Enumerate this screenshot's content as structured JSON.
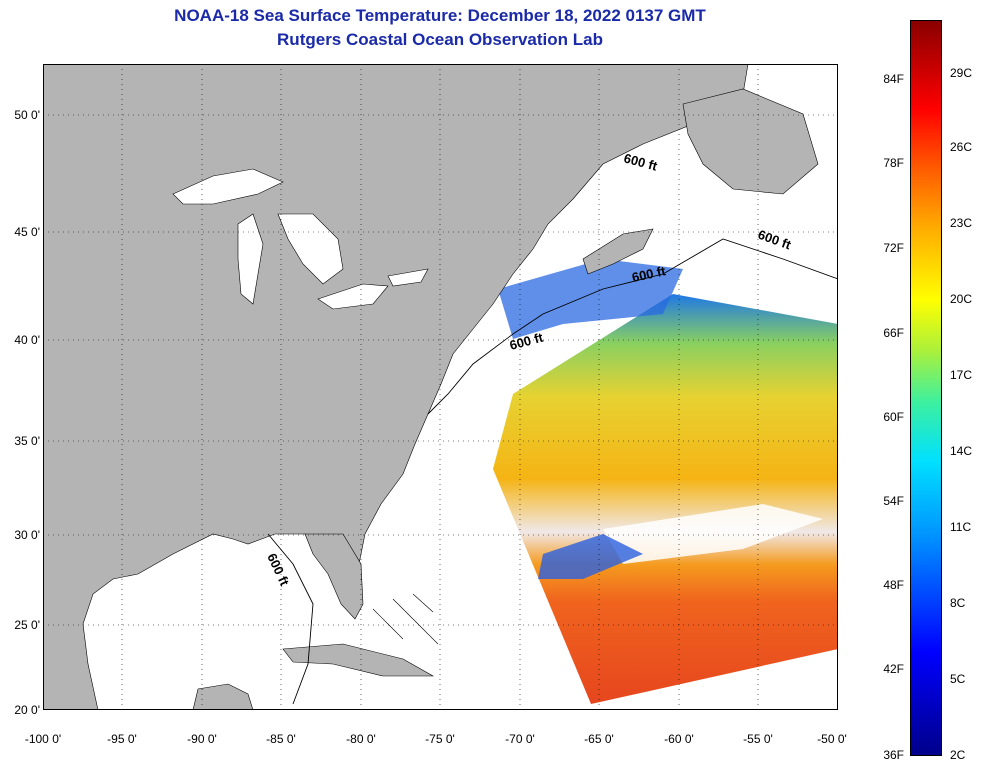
{
  "header": {
    "title": "NOAA-18 Sea Surface Temperature:  December 18, 2022 0137 GMT",
    "subtitle": "Rutgers Coastal Ocean Observation Lab"
  },
  "map": {
    "lat_labels": [
      "50 0'",
      "45 0'",
      "40 0'",
      "35 0'",
      "30 0'",
      "25 0'",
      "20 0'"
    ],
    "lon_labels": [
      "-100 0'",
      "-95 0'",
      "-90 0'",
      "-85 0'",
      "-80 0'",
      "-75 0'",
      "-70 0'",
      "-65 0'",
      "-60 0'",
      "-55 0'",
      "-50 0'"
    ],
    "contour_label": "600 ft",
    "colors": {
      "land": "#b4b4b4",
      "water": "#ffffff",
      "title": "#1a2aa8"
    }
  },
  "colorbar": {
    "fahrenheit_labels": [
      "84F",
      "78F",
      "72F",
      "66F",
      "60F",
      "54F",
      "48F",
      "42F",
      "36F"
    ],
    "celsius_labels": [
      "29C",
      "26C",
      "23C",
      "20C",
      "17C",
      "14C",
      "11C",
      "8C",
      "5C",
      "2C"
    ]
  }
}
